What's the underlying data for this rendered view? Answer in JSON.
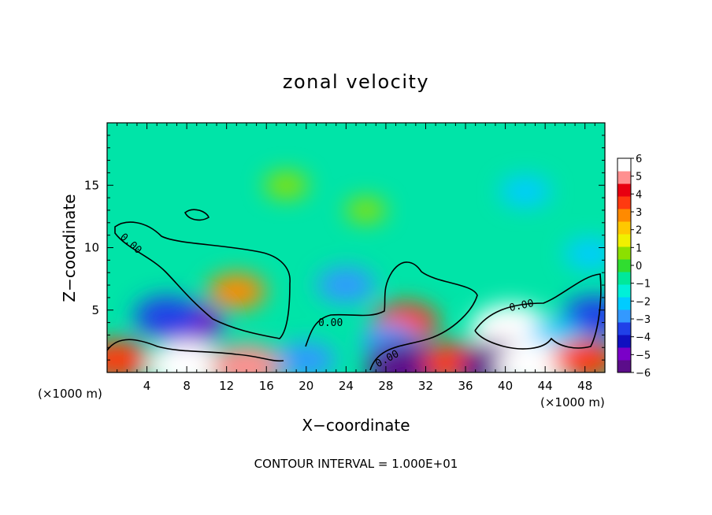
{
  "chart_data": {
    "type": "heatmap",
    "title": "zonal velocity",
    "xlabel": "X−coordinate",
    "ylabel": "Z−coordinate",
    "x_unit_left": "(×1000 m)",
    "x_unit_right": "(×1000 m)",
    "footer": "CONTOUR INTERVAL = 1.000E+01",
    "xlim": [
      0,
      50
    ],
    "ylim": [
      0,
      20
    ],
    "x_ticks": [
      "4",
      "8",
      "12",
      "16",
      "20",
      "24",
      "28",
      "32",
      "36",
      "40",
      "44",
      "48"
    ],
    "x_tick_values": [
      4,
      8,
      12,
      16,
      20,
      24,
      28,
      32,
      36,
      40,
      44,
      48
    ],
    "y_ticks": [
      "5",
      "10",
      "15"
    ],
    "y_tick_values": [
      5,
      10,
      15
    ],
    "colorbar": {
      "vmin": -6,
      "vmax": 6,
      "labels": [
        "6",
        "5",
        "4",
        "3",
        "2",
        "1",
        "0",
        "−1",
        "−2",
        "−3",
        "−4",
        "−5",
        "−6"
      ],
      "label_values": [
        6,
        5,
        4,
        3,
        2,
        1,
        0,
        -1,
        -2,
        -3,
        -4,
        -5,
        -6
      ],
      "colors": [
        "#5b0d8a",
        "#7a00c8",
        "#1010c0",
        "#2040e8",
        "#3399ff",
        "#00ccff",
        "#00f0d8",
        "#00e89a",
        "#30dd30",
        "#8ce000",
        "#f0f000",
        "#ffc800",
        "#ff8a00",
        "#ff3a10",
        "#e80010",
        "#ff9090",
        "#ffffff"
      ]
    },
    "contour_labels": [
      "0.00",
      "0.00",
      "0.00",
      "0.00"
    ],
    "features": [
      {
        "x": 13,
        "z": 6.5,
        "value": 3
      },
      {
        "x": 8,
        "z": 3.8,
        "value": -5
      },
      {
        "x": 6,
        "z": 4.5,
        "value": -4
      },
      {
        "x": 24,
        "z": 7,
        "value": -3
      },
      {
        "x": 30,
        "z": 4,
        "value": 4
      },
      {
        "x": 28.5,
        "z": 2.5,
        "value": -3
      },
      {
        "x": 40.5,
        "z": 3.5,
        "value": 6
      },
      {
        "x": 49,
        "z": 4.5,
        "value": -4
      },
      {
        "x": 45,
        "z": 3,
        "value": -2
      },
      {
        "x": 42,
        "z": 14.5,
        "value": -2
      },
      {
        "x": 48.5,
        "z": 9.5,
        "value": -2
      },
      {
        "x": 8,
        "z": 0.5,
        "value": 6
      },
      {
        "x": 1,
        "z": 1,
        "value": 4
      },
      {
        "x": 14,
        "z": 0.5,
        "value": 5
      },
      {
        "x": 20,
        "z": 1,
        "value": -3
      },
      {
        "x": 30,
        "z": 0.5,
        "value": -6
      },
      {
        "x": 35,
        "z": 0.8,
        "value": 4
      },
      {
        "x": 39.5,
        "z": 0.5,
        "value": -6
      },
      {
        "x": 43,
        "z": 0.5,
        "value": 6
      },
      {
        "x": 48,
        "z": 1,
        "value": 4
      },
      {
        "x": 18,
        "z": 15,
        "value": 1
      },
      {
        "x": 26,
        "z": 13,
        "value": 0.5
      }
    ]
  }
}
